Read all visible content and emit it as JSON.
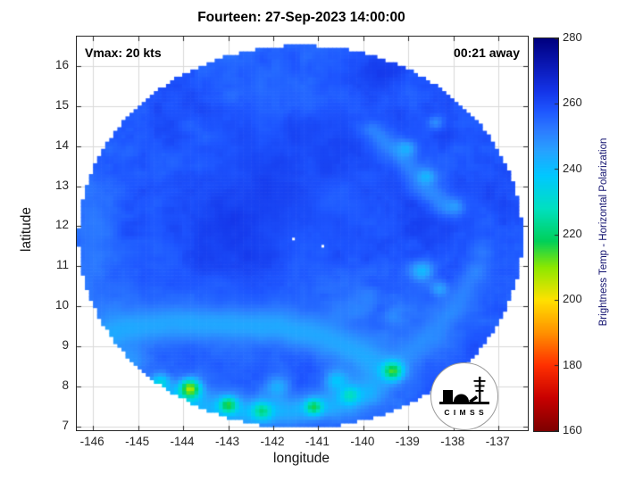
{
  "annotations": {
    "vmax": "Vmax: 20 kts",
    "time_away": "00:21 away"
  },
  "chart_data": {
    "type": "heatmap",
    "title": "Fourteen: 27-Sep-2023 14:00:00",
    "xlabel": "longitude",
    "ylabel": "latitude",
    "xlim": [
      -146.36,
      -136.35
    ],
    "ylim": [
      6.91,
      16.73
    ],
    "xticks": [
      -146,
      -145,
      -144,
      -143,
      -142,
      -141,
      -140,
      -139,
      -138,
      -137
    ],
    "yticks": [
      7,
      8,
      9,
      10,
      11,
      12,
      13,
      14,
      15,
      16
    ],
    "grid": true,
    "grid_color": "#d9d9d9",
    "colorbar": {
      "label": "Brightness Temp - Horizontal Polarization",
      "min": 160,
      "max": 280,
      "ticks": [
        160,
        180,
        200,
        220,
        240,
        260,
        280
      ],
      "stops": [
        {
          "v": 160,
          "c": "#7f0000"
        },
        {
          "v": 170,
          "c": "#c80000"
        },
        {
          "v": 180,
          "c": "#ff3000"
        },
        {
          "v": 190,
          "c": "#ff9100"
        },
        {
          "v": 200,
          "c": "#ffe100"
        },
        {
          "v": 210,
          "c": "#8ce800"
        },
        {
          "v": 218,
          "c": "#00d05a"
        },
        {
          "v": 228,
          "c": "#00e0c0"
        },
        {
          "v": 238,
          "c": "#00c8ff"
        },
        {
          "v": 246,
          "c": "#28a0ff"
        },
        {
          "v": 252,
          "c": "#2c7bff"
        },
        {
          "v": 258,
          "c": "#1e56ff"
        },
        {
          "v": 264,
          "c": "#1434e8"
        },
        {
          "v": 272,
          "c": "#0a18b4"
        },
        {
          "v": 280,
          "c": "#00007f"
        }
      ]
    },
    "field": {
      "shape": "disk",
      "center": [
        -141.4,
        11.74
      ],
      "radius_lon": 4.92,
      "radius_lat": 4.77,
      "cell": 0.09,
      "base": 257,
      "noise": [
        [
          0.55,
          3.0
        ],
        [
          1.3,
          2.2
        ],
        [
          3.0,
          1.6
        ],
        [
          6.5,
          1.1
        ]
      ],
      "features": [
        {
          "v": 266,
          "sig": 1.1,
          "s": 0.42,
          "c": [
            -142.4,
            12.0
          ]
        },
        {
          "v": 264,
          "sig": 0.8,
          "s": 0.35,
          "c": [
            -141.8,
            12.8
          ]
        },
        {
          "v": 262,
          "sig": 0.9,
          "s": 0.3,
          "c": [
            -143.0,
            13.8
          ]
        },
        {
          "v": 261,
          "sig": 0.9,
          "s": 0.25,
          "c": [
            -141.0,
            14.8
          ]
        },
        {
          "v": 262,
          "sig": 0.8,
          "s": 0.25,
          "c": [
            -140.3,
            12.2
          ]
        },
        {
          "v": 262,
          "sig": 0.7,
          "s": 0.25,
          "c": [
            -143.9,
            11.0
          ]
        },
        {
          "v": 250,
          "sig": 0.35,
          "s": 0.55,
          "pts": [
            [
              -146.3,
              10.4
            ],
            [
              -146.0,
              11.6
            ],
            [
              -146.15,
              12.9
            ]
          ]
        },
        {
          "v": 248,
          "sig": 0.4,
          "s": 0.5,
          "c": [
            -145.6,
            9.9
          ]
        },
        {
          "v": 240,
          "sig": 0.3,
          "s": 0.6,
          "c": [
            -145.2,
            8.7
          ]
        },
        {
          "v": 249,
          "sig": 0.6,
          "s": 0.35,
          "pts": [
            [
              -146.35,
              9.0
            ],
            [
              -145.3,
              9.45
            ],
            [
              -144.2,
              9.6
            ],
            [
              -143.0,
              9.55
            ],
            [
              -141.9,
              9.5
            ],
            [
              -140.9,
              9.25
            ],
            [
              -140.1,
              8.85
            ],
            [
              -139.6,
              8.45
            ]
          ]
        },
        {
          "v": 242,
          "sig": 0.3,
          "s": 0.8,
          "pts": [
            [
              -146.35,
              9.0
            ],
            [
              -145.3,
              9.45
            ],
            [
              -144.2,
              9.6
            ],
            [
              -143.0,
              9.55
            ],
            [
              -141.9,
              9.5
            ],
            [
              -140.9,
              9.25
            ],
            [
              -140.1,
              8.85
            ],
            [
              -139.6,
              8.45
            ]
          ]
        },
        {
          "v": 237,
          "sig": 0.28,
          "s": 0.7,
          "pts": [
            [
              -144.6,
              7.75
            ],
            [
              -143.6,
              7.5
            ],
            [
              -142.6,
              7.35
            ],
            [
              -141.6,
              7.4
            ],
            [
              -140.7,
              7.55
            ],
            [
              -139.9,
              7.85
            ]
          ]
        },
        {
          "v": 246,
          "sig": 0.22,
          "s": 0.6,
          "pts": [
            [
              -139.2,
              8.6
            ],
            [
              -138.5,
              9.3
            ],
            [
              -137.9,
              10.1
            ],
            [
              -137.5,
              10.9
            ]
          ]
        },
        {
          "v": 244,
          "sig": 0.2,
          "s": 0.6,
          "pts": [
            [
              -139.8,
              14.4
            ],
            [
              -139.2,
              13.8
            ],
            [
              -138.7,
              13.1
            ],
            [
              -138.2,
              12.5
            ]
          ]
        },
        {
          "v": 204,
          "sig": 0.17,
          "s": 0.95,
          "c": [
            -143.85,
            7.95
          ]
        },
        {
          "v": 212,
          "sig": 0.14,
          "s": 0.9,
          "c": [
            -143.0,
            7.55
          ]
        },
        {
          "v": 218,
          "sig": 0.15,
          "s": 0.85,
          "c": [
            -142.25,
            7.4
          ]
        },
        {
          "v": 214,
          "sig": 0.13,
          "s": 0.9,
          "c": [
            -141.1,
            7.5
          ]
        },
        {
          "v": 224,
          "sig": 0.15,
          "s": 0.8,
          "c": [
            -140.3,
            7.8
          ]
        },
        {
          "v": 210,
          "sig": 0.16,
          "s": 0.9,
          "c": [
            -139.35,
            8.4
          ]
        },
        {
          "v": 228,
          "sig": 0.15,
          "s": 0.8,
          "c": [
            -144.5,
            8.1
          ]
        },
        {
          "v": 232,
          "sig": 0.18,
          "s": 0.7,
          "c": [
            -140.6,
            8.15
          ]
        },
        {
          "v": 235,
          "sig": 0.2,
          "s": 0.6,
          "c": [
            -141.9,
            8.0
          ]
        },
        {
          "v": 236,
          "sig": 0.18,
          "s": 0.75,
          "c": [
            -138.7,
            10.9
          ]
        },
        {
          "v": 240,
          "sig": 0.15,
          "s": 0.7,
          "c": [
            -138.3,
            10.45
          ]
        },
        {
          "v": 239,
          "sig": 0.15,
          "s": 0.75,
          "c": [
            -139.05,
            13.95
          ]
        },
        {
          "v": 238,
          "sig": 0.13,
          "s": 0.75,
          "c": [
            -138.6,
            13.25
          ]
        },
        {
          "v": 242,
          "sig": 0.15,
          "s": 0.65,
          "c": [
            -137.95,
            12.5
          ]
        },
        {
          "v": 243,
          "sig": 0.12,
          "s": 0.6,
          "c": [
            -138.4,
            14.6
          ]
        },
        {
          "v": 246,
          "sig": 0.2,
          "s": 0.5,
          "c": [
            -137.4,
            11.4
          ]
        },
        {
          "v": 245,
          "sig": 0.18,
          "s": 0.5,
          "c": [
            -139.9,
            10.25
          ]
        },
        {
          "v": 244,
          "sig": 0.16,
          "s": 0.5,
          "c": [
            -139.35,
            9.75
          ]
        },
        {
          "v": 247,
          "sig": 0.2,
          "s": 0.4,
          "c": [
            -140.15,
            9.9
          ]
        }
      ],
      "white_spots": [
        [
          -141.55,
          11.68
        ],
        [
          -140.9,
          11.5
        ]
      ]
    },
    "logo_text": "C I M S S"
  }
}
